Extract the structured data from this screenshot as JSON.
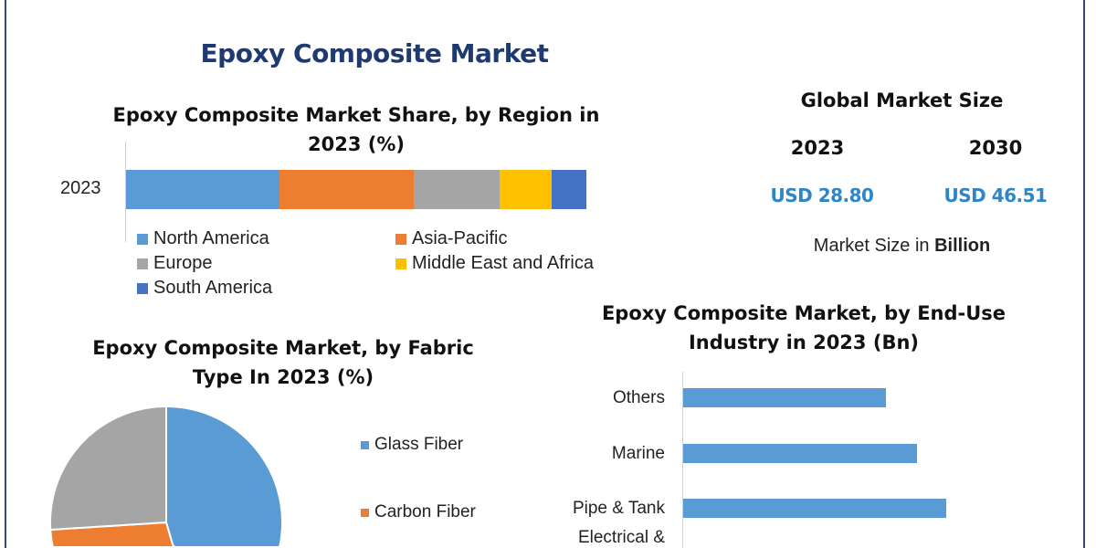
{
  "title": "Epoxy Composite Market",
  "colors": {
    "blue": "#5b9bd5",
    "orange": "#ed7d31",
    "grey": "#a5a5a5",
    "yellow": "#ffc000",
    "darkblue": "#4472c4",
    "title": "#1f3a73",
    "usd": "#2e86c8"
  },
  "global_market": {
    "title": "Global Market Size",
    "years": [
      "2023",
      "2030"
    ],
    "values": [
      "USD 28.80",
      "USD 46.51"
    ],
    "unit_prefix": "Market Size in",
    "unit_bold": "Billion"
  },
  "chart_data": [
    {
      "type": "bar",
      "orientation": "horizontal-stacked",
      "title": "Epoxy Composite Market Share, by Region in 2023 (%)",
      "categories": [
        "2023"
      ],
      "series": [
        {
          "name": "North America",
          "values": [
            33.3
          ],
          "color": "#5b9bd5"
        },
        {
          "name": "Asia-Pacific",
          "values": [
            29.2
          ],
          "color": "#ed7d31"
        },
        {
          "name": "Europe",
          "values": [
            18.7
          ],
          "color": "#a5a5a5"
        },
        {
          "name": "Middle East and Africa",
          "values": [
            11.3
          ],
          "color": "#ffc000"
        },
        {
          "name": "South America",
          "values": [
            7.5
          ],
          "color": "#4472c4"
        }
      ],
      "legend": "bottom"
    },
    {
      "type": "pie",
      "title": "Epoxy Composite Market, by Fabric Type In 2023 (%)",
      "slices": [
        {
          "name": "Glass Fiber",
          "value": 45.5,
          "color": "#5b9bd5"
        },
        {
          "name": "Carbon Fiber",
          "value": 28.5,
          "color": "#ed7d31"
        },
        {
          "name": "",
          "value": 26,
          "color": "#a5a5a5"
        }
      ],
      "legend": "right"
    },
    {
      "type": "bar",
      "orientation": "horizontal",
      "title": "Epoxy Composite Market, by End-Use Industry in 2023 (Bn)",
      "categories": [
        "Others",
        "Marine",
        "Pipe & Tank",
        "Electrical &"
      ],
      "values": [
        7.7,
        8.9,
        10.0,
        null
      ],
      "color": "#5b9bd5"
    }
  ]
}
